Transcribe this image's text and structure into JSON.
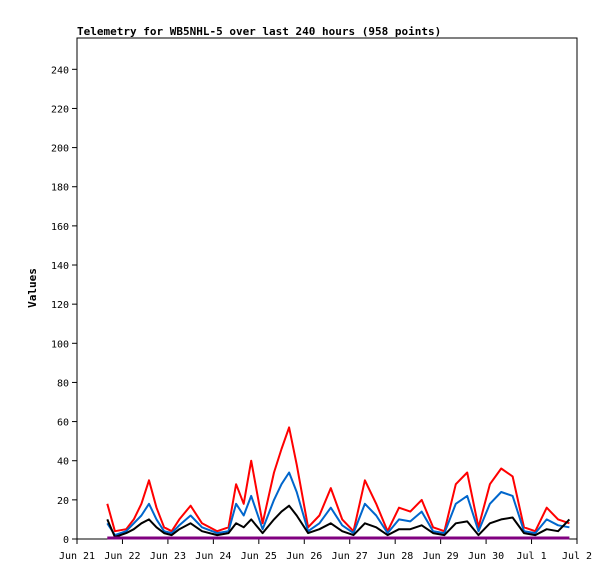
{
  "chart_data": {
    "type": "line",
    "title": "Telemetry for WB5NHL-5 over last 240 hours (958 points)",
    "xlabel": "",
    "ylabel": "Values",
    "ylim": [
      0,
      256
    ],
    "yticks": [
      0,
      20,
      40,
      60,
      80,
      100,
      120,
      140,
      160,
      180,
      200,
      220,
      240
    ],
    "xlim": [
      "2022-06-21",
      "2022-07-02"
    ],
    "xtick_labels": [
      "Jun 21",
      "Jun 22",
      "Jun 23",
      "Jun 24",
      "Jun 25",
      "Jun 26",
      "Jun 27",
      "Jun 28",
      "Jun 29",
      "Jun 30",
      "Jul 1",
      "Jul 2"
    ],
    "grid": false,
    "legend": "none",
    "series": [
      {
        "color": "#ff0000",
        "x": [
          "2022-06-21T16:00",
          "2022-06-21T20:00",
          "2022-06-22T02:00",
          "2022-06-22T06:00",
          "2022-06-22T10:00",
          "2022-06-22T14:00",
          "2022-06-22T18:00",
          "2022-06-22T22:00",
          "2022-06-23T02:00",
          "2022-06-23T06:00",
          "2022-06-23T12:00",
          "2022-06-23T18:00",
          "2022-06-24T02:00",
          "2022-06-24T08:00",
          "2022-06-24T12:00",
          "2022-06-24T16:00",
          "2022-06-24T20:00",
          "2022-06-25T02:00",
          "2022-06-25T08:00",
          "2022-06-25T12:00",
          "2022-06-25T16:00",
          "2022-06-25T20:00",
          "2022-06-26T02:00",
          "2022-06-26T08:00",
          "2022-06-26T14:00",
          "2022-06-26T20:00",
          "2022-06-27T02:00",
          "2022-06-27T08:00",
          "2022-06-27T14:00",
          "2022-06-27T20:00",
          "2022-06-28T02:00",
          "2022-06-28T08:00",
          "2022-06-28T14:00",
          "2022-06-28T20:00",
          "2022-06-29T02:00",
          "2022-06-29T08:00",
          "2022-06-29T14:00",
          "2022-06-29T20:00",
          "2022-06-30T02:00",
          "2022-06-30T08:00",
          "2022-06-30T14:00",
          "2022-06-30T20:00",
          "2022-07-01T02:00",
          "2022-07-01T08:00",
          "2022-07-01T14:00",
          "2022-07-01T20:00"
        ],
        "y": [
          18,
          4,
          5,
          10,
          18,
          30,
          16,
          6,
          4,
          10,
          17,
          8,
          4,
          6,
          28,
          18,
          40,
          8,
          34,
          46,
          57,
          38,
          6,
          12,
          26,
          10,
          4,
          30,
          18,
          4,
          16,
          14,
          20,
          6,
          4,
          28,
          34,
          6,
          28,
          36,
          32,
          6,
          4,
          16,
          10,
          8
        ]
      },
      {
        "color": "#0066cc",
        "x": [
          "2022-06-21T16:00",
          "2022-06-21T20:00",
          "2022-06-22T02:00",
          "2022-06-22T06:00",
          "2022-06-22T10:00",
          "2022-06-22T14:00",
          "2022-06-22T18:00",
          "2022-06-22T22:00",
          "2022-06-23T02:00",
          "2022-06-23T06:00",
          "2022-06-23T12:00",
          "2022-06-23T18:00",
          "2022-06-24T02:00",
          "2022-06-24T08:00",
          "2022-06-24T12:00",
          "2022-06-24T16:00",
          "2022-06-24T20:00",
          "2022-06-25T02:00",
          "2022-06-25T08:00",
          "2022-06-25T12:00",
          "2022-06-25T16:00",
          "2022-06-25T20:00",
          "2022-06-26T02:00",
          "2022-06-26T08:00",
          "2022-06-26T14:00",
          "2022-06-26T20:00",
          "2022-06-27T02:00",
          "2022-06-27T08:00",
          "2022-06-27T14:00",
          "2022-06-27T20:00",
          "2022-06-28T02:00",
          "2022-06-28T08:00",
          "2022-06-28T14:00",
          "2022-06-28T20:00",
          "2022-06-29T02:00",
          "2022-06-29T08:00",
          "2022-06-29T14:00",
          "2022-06-29T20:00",
          "2022-06-30T02:00",
          "2022-06-30T08:00",
          "2022-06-30T14:00",
          "2022-06-30T20:00",
          "2022-07-01T02:00",
          "2022-07-01T08:00",
          "2022-07-01T14:00",
          "2022-07-01T20:00"
        ],
        "y": [
          8,
          2,
          4,
          8,
          12,
          18,
          10,
          4,
          3,
          7,
          12,
          6,
          3,
          4,
          18,
          12,
          22,
          5,
          20,
          28,
          34,
          24,
          4,
          8,
          16,
          7,
          3,
          18,
          12,
          3,
          10,
          9,
          14,
          4,
          3,
          18,
          22,
          4,
          18,
          24,
          22,
          4,
          3,
          10,
          7,
          6
        ]
      },
      {
        "color": "#000000",
        "x": [
          "2022-06-21T16:00",
          "2022-06-21T20:00",
          "2022-06-22T02:00",
          "2022-06-22T06:00",
          "2022-06-22T10:00",
          "2022-06-22T14:00",
          "2022-06-22T18:00",
          "2022-06-22T22:00",
          "2022-06-23T02:00",
          "2022-06-23T06:00",
          "2022-06-23T12:00",
          "2022-06-23T18:00",
          "2022-06-24T02:00",
          "2022-06-24T08:00",
          "2022-06-24T12:00",
          "2022-06-24T16:00",
          "2022-06-24T20:00",
          "2022-06-25T02:00",
          "2022-06-25T08:00",
          "2022-06-25T12:00",
          "2022-06-25T16:00",
          "2022-06-25T20:00",
          "2022-06-26T02:00",
          "2022-06-26T08:00",
          "2022-06-26T14:00",
          "2022-06-26T20:00",
          "2022-06-27T02:00",
          "2022-06-27T08:00",
          "2022-06-27T14:00",
          "2022-06-27T20:00",
          "2022-06-28T02:00",
          "2022-06-28T08:00",
          "2022-06-28T14:00",
          "2022-06-28T20:00",
          "2022-06-29T02:00",
          "2022-06-29T08:00",
          "2022-06-29T14:00",
          "2022-06-29T20:00",
          "2022-06-30T02:00",
          "2022-06-30T08:00",
          "2022-06-30T14:00",
          "2022-06-30T20:00",
          "2022-07-01T02:00",
          "2022-07-01T08:00",
          "2022-07-01T14:00",
          "2022-07-01T20:00"
        ],
        "y": [
          10,
          1,
          3,
          5,
          8,
          10,
          6,
          3,
          2,
          5,
          8,
          4,
          2,
          3,
          8,
          6,
          10,
          3,
          10,
          14,
          17,
          12,
          3,
          5,
          8,
          4,
          2,
          8,
          6,
          2,
          5,
          5,
          7,
          3,
          2,
          8,
          9,
          2,
          8,
          10,
          11,
          3,
          2,
          5,
          4,
          10
        ]
      },
      {
        "color": "#800080",
        "x": [
          "2022-06-21T16:00",
          "2022-07-01T20:00"
        ],
        "y": [
          0.5,
          0.5
        ]
      }
    ]
  }
}
